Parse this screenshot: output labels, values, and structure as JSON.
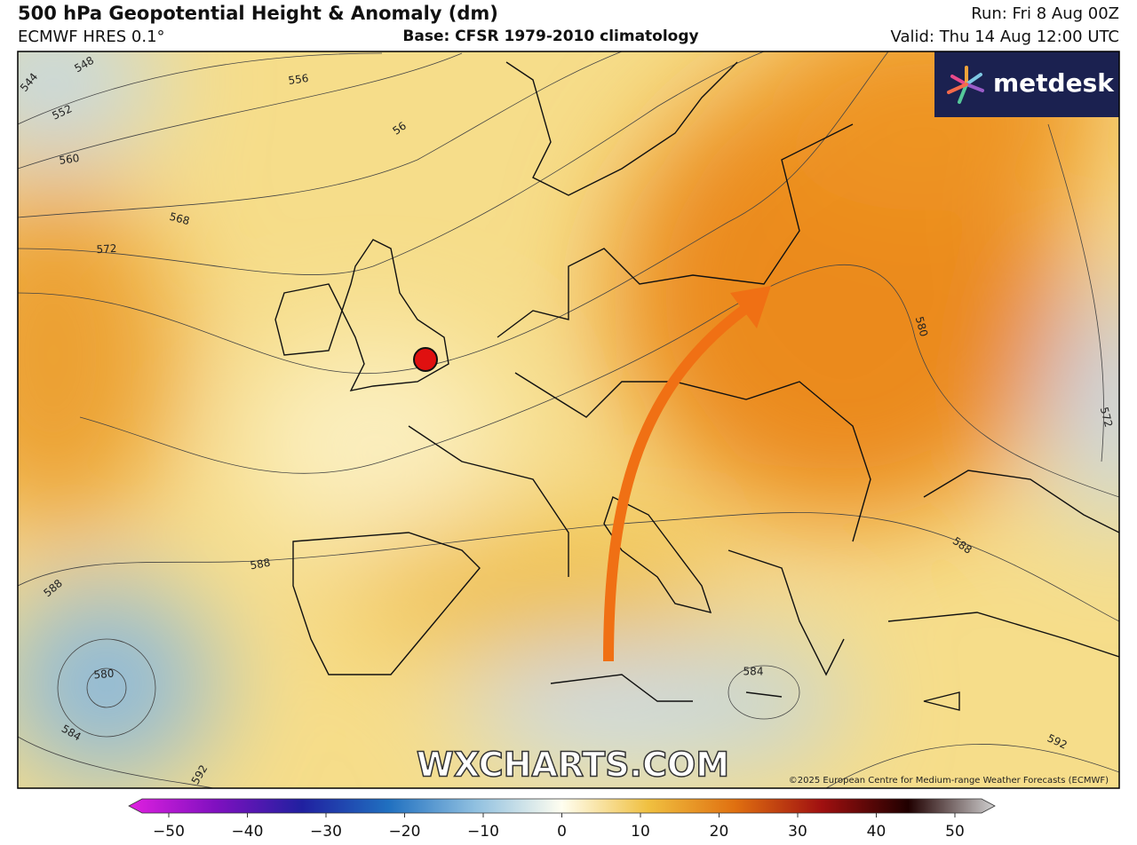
{
  "header": {
    "title": "500 hPa Geopotential Height & Anomaly (dm)",
    "model": "ECMWF HRES 0.1°",
    "base": "Base: CFSR 1979-2010 climatology",
    "run": "Run: Fri 8 Aug 00Z",
    "valid": "Valid: Thu 14 Aug 12:00 UTC"
  },
  "logo": "metdesk",
  "watermark": "WXCHARTS.COM",
  "copyright": "©2025 European Centre for Medium-range Weather Forecasts (ECMWF)",
  "contour_labels": [
    548,
    544,
    552,
    556,
    56,
    560,
    568,
    572,
    580,
    572,
    588,
    588,
    588,
    580,
    584,
    592,
    584,
    592
  ],
  "colorbar": {
    "ticks": [
      {
        "value": -50,
        "label": "−50"
      },
      {
        "value": -40,
        "label": "−40"
      },
      {
        "value": -30,
        "label": "−30"
      },
      {
        "value": -20,
        "label": "−20"
      },
      {
        "value": -10,
        "label": "−10"
      },
      0,
      10,
      20,
      30,
      40,
      50
    ]
  }
}
